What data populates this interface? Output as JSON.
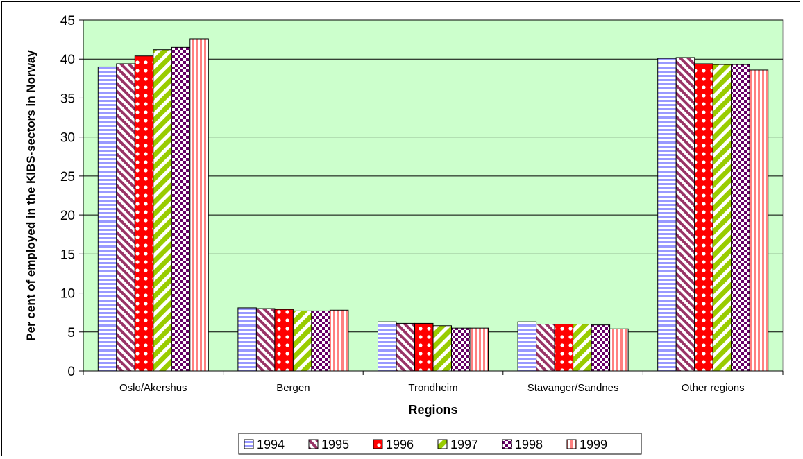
{
  "chart_data": {
    "type": "bar",
    "title": "",
    "xlabel": "Regions",
    "ylabel": "Per cent of employed in the KIBS-sectors in Norway",
    "ylim": [
      0,
      45
    ],
    "yticks": [
      0,
      5,
      10,
      15,
      20,
      25,
      30,
      35,
      40,
      45
    ],
    "grid": true,
    "plot_background": "#CCFFCC",
    "legend_position": "bottom",
    "categories": [
      "Oslo/Akershus",
      "Bergen",
      "Trondheim",
      "Stavanger/Sandnes",
      "Other regions"
    ],
    "series": [
      {
        "name": "1994",
        "color": "#9999FF",
        "pattern": "horizontal-stripes",
        "values": [
          39.0,
          8.1,
          6.3,
          6.3,
          40.1
        ]
      },
      {
        "name": "1995",
        "color": "#993366",
        "pattern": "diagonal-stripes",
        "values": [
          39.4,
          8.0,
          6.1,
          6.0,
          40.2
        ]
      },
      {
        "name": "1996",
        "color": "#FF0000",
        "pattern": "circles",
        "values": [
          40.4,
          7.9,
          6.1,
          6.0,
          39.4
        ]
      },
      {
        "name": "1997",
        "color": "#99CC00",
        "pattern": "wide-diagonal-stripes",
        "values": [
          41.2,
          7.7,
          5.8,
          6.0,
          39.3
        ]
      },
      {
        "name": "1998",
        "color": "#660066",
        "pattern": "checkerboard",
        "values": [
          41.5,
          7.7,
          5.5,
          5.9,
          39.3
        ]
      },
      {
        "name": "1999",
        "color": "#FF8080",
        "pattern": "vertical-stripes",
        "values": [
          42.6,
          7.8,
          5.5,
          5.4,
          38.6
        ]
      }
    ]
  }
}
